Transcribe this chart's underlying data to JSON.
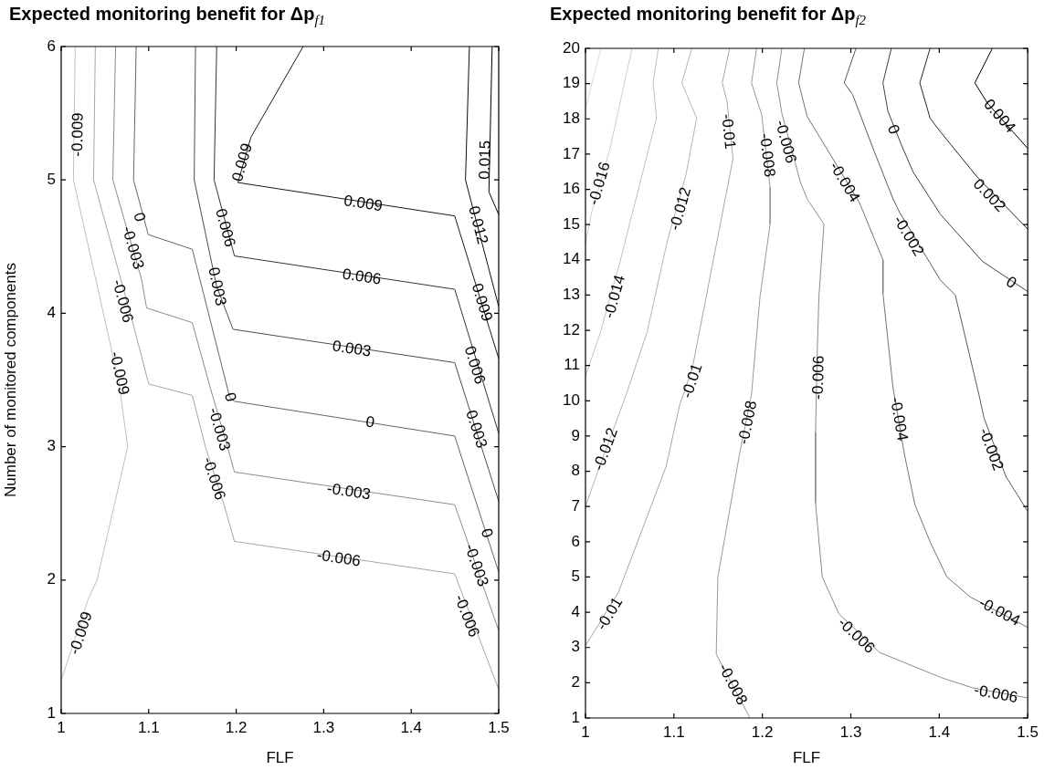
{
  "chart_data": [
    {
      "type": "line",
      "title": "Expected monitoring benefit for Δp$_{f1}$",
      "xlabel": "FLF",
      "ylabel": "Number of monitored components",
      "marker": "none",
      "legend": false,
      "xlim": [
        1,
        1.5
      ],
      "xticks": [
        1,
        1.1,
        1.2,
        1.3,
        1.4,
        1.5
      ],
      "ylim": [
        1,
        6
      ],
      "yticks": [
        1,
        2,
        3,
        4,
        5,
        6
      ],
      "series": [
        {
          "color": "#c0c0c0",
          "x": [
            1.016,
            1.014,
            1.066,
            1.076,
            1.041,
            1.031,
            1.0
          ],
          "values": [
            6,
            5,
            3.48,
            3,
            2,
            1.86,
            1.25
          ]
        },
        {
          "color": "#a6a6a6",
          "x": [
            1.039,
            1.037,
            1.0827,
            1.1,
            1.1498,
            1.165,
            1.187,
            1.198,
            1.4497,
            1.5
          ],
          "values": [
            6,
            5,
            3.907,
            3.47,
            3.384,
            2.995,
            2.545,
            2.29,
            2.046,
            1.18
          ]
        },
        {
          "color": "#8c8c8c",
          "x": [
            1.0622,
            1.059,
            1.092,
            1.0976,
            1.1498,
            1.17,
            1.19,
            1.198,
            1.4497,
            1.5
          ],
          "values": [
            6,
            5,
            4.25,
            4.04,
            3.93,
            3.45,
            3.0,
            2.81,
            2.565,
            1.62
          ]
        },
        {
          "color": "#666666",
          "x": [
            1.0857,
            1.0827,
            1.0995,
            1.1498,
            1.1926,
            1.198,
            1.4497,
            1.5
          ],
          "values": [
            6,
            5,
            4.59,
            4.48,
            3.37,
            3.34,
            3.08,
            2.06
          ]
        },
        {
          "color": "#4d4d4d",
          "x": [
            1.1535,
            1.152,
            1.1777,
            1.1964,
            1.4497,
            1.5
          ],
          "values": [
            6,
            5,
            4.2,
            3.88,
            3.63,
            2.59
          ]
        },
        {
          "color": "#333333",
          "x": [
            1.1777,
            1.1747,
            1.198,
            1.4497,
            1.5
          ],
          "values": [
            6,
            5,
            4.43,
            4.18,
            3.1
          ]
        },
        {
          "color": "#1a1a1a",
          "x": [
            1.2765,
            1.2168,
            1.202,
            1.4497,
            1.5
          ],
          "values": [
            6,
            5.32,
            4.98,
            4.73,
            3.66
          ]
        },
        {
          "color": "#0d0d0d",
          "x": [
            1.4665,
            1.462,
            1.468,
            1.5
          ],
          "values": [
            6,
            5,
            4.85,
            4.05
          ]
        },
        {
          "color": "#000000",
          "x": [
            1.4925,
            1.4888,
            1.5
          ],
          "values": [
            6,
            4.91,
            4.74
          ]
        }
      ],
      "annotations": [
        {
          "text": "-0.009",
          "x": 1.0194,
          "y": 5.34
        },
        {
          "text": "-0.009",
          "x": 1.066,
          "y": 3.55
        },
        {
          "text": "-0.009",
          "x": 1.023,
          "y": 1.6
        },
        {
          "text": "-0.006",
          "x": 1.0697,
          "y": 4.09
        },
        {
          "text": "-0.006",
          "x": 1.174,
          "y": 2.76
        },
        {
          "text": "-0.006",
          "x": 1.317,
          "y": 2.16
        },
        {
          "text": "-0.006",
          "x": 1.463,
          "y": 1.73
        },
        {
          "text": "-0.003",
          "x": 1.0814,
          "y": 4.49
        },
        {
          "text": "-0.003",
          "x": 1.18,
          "y": 3.13
        },
        {
          "text": "-0.003",
          "x": 1.3286,
          "y": 2.66
        },
        {
          "text": "-0.003",
          "x": 1.4739,
          "y": 2.11
        },
        {
          "text": "0",
          "x": 1.0887,
          "y": 4.72
        },
        {
          "text": "0",
          "x": 1.1926,
          "y": 3.37
        },
        {
          "text": "0",
          "x": 1.353,
          "y": 3.18
        },
        {
          "text": "0",
          "x": 1.4857,
          "y": 2.35
        },
        {
          "text": "0.003",
          "x": 1.1777,
          "y": 4.2
        },
        {
          "text": "0.003",
          "x": 1.332,
          "y": 3.73
        },
        {
          "text": "0.003",
          "x": 1.4739,
          "y": 3.13
        },
        {
          "text": "0.006",
          "x": 1.187,
          "y": 4.64
        },
        {
          "text": "0.006",
          "x": 1.3435,
          "y": 4.27
        },
        {
          "text": "0.006",
          "x": 1.472,
          "y": 3.61
        },
        {
          "text": "0.009",
          "x": 1.2075,
          "y": 5.13
        },
        {
          "text": "0.009",
          "x": 1.345,
          "y": 4.82
        },
        {
          "text": "0.009",
          "x": 1.4803,
          "y": 4.08
        },
        {
          "text": "0.012",
          "x": 1.4758,
          "y": 4.66
        },
        {
          "text": "0.015",
          "x": 1.485,
          "y": 5.15
        }
      ]
    },
    {
      "type": "line",
      "title": "Expected monitoring benefit for Δp$_{f2}$",
      "xlabel": "FLF",
      "marker": "none",
      "legend": false,
      "xlim": [
        1,
        1.5
      ],
      "xticks": [
        1,
        1.1,
        1.2,
        1.3,
        1.4,
        1.5
      ],
      "ylim": [
        1,
        20
      ],
      "yticks": [
        1,
        2,
        3,
        4,
        5,
        6,
        7,
        8,
        9,
        10,
        11,
        12,
        13,
        14,
        15,
        16,
        17,
        18,
        19,
        20
      ],
      "series": [
        {
          "color": "#d9d9d9",
          "x": [
            1.0175,
            1.0
          ],
          "values": [
            20,
            18.3
          ]
        },
        {
          "color": "#cccccc",
          "x": [
            1.0526,
            1.0278,
            1.0069,
            1.0
          ],
          "values": [
            20,
            17.16,
            15.34,
            14.45
          ]
        },
        {
          "color": "#c0c0c0",
          "x": [
            1.0823,
            1.0765,
            1.0803,
            1.0392,
            1.0164,
            1.0
          ],
          "values": [
            20,
            19.02,
            18.02,
            13.96,
            11.9,
            10.7
          ]
        },
        {
          "color": "#b3b3b3",
          "x": [
            1.1203,
            1.1089,
            1.1257,
            1.1135,
            1.0925,
            1.0697,
            1.0468,
            1.0392,
            1.0126,
            1.0
          ],
          "values": [
            20,
            19.02,
            18.02,
            16.4,
            14.53,
            11.95,
            10.23,
            9.71,
            7.9,
            7.0
          ]
        },
        {
          "color": "#a6a6a6",
          "x": [
            1.163,
            1.1546,
            1.16,
            1.1668,
            1.121,
            1.1063,
            1.0912,
            1.0373,
            1.0
          ],
          "values": [
            20,
            19.02,
            18.5,
            16.87,
            10.95,
            9.86,
            8.14,
            4.57,
            3.05
          ]
        },
        {
          "color": "#999999",
          "x": [
            1.1935,
            1.1877,
            1.1992,
            1.2087,
            1.2087,
            1.1973,
            1.1877,
            1.1744,
            1.1497,
            1.1478,
            1.186
          ],
          "values": [
            20,
            19.02,
            18.12,
            16.06,
            15.01,
            12.95,
            10.18,
            8.52,
            5.0,
            2.81,
            1.0
          ]
        },
        {
          "color": "#8c8c8c",
          "x": [
            1.222,
            1.2163,
            1.222,
            1.243,
            1.2506,
            1.2696,
            1.2639,
            1.262,
            1.2601,
            1.2601,
            1.2677,
            1.2867,
            1.3324,
            1.4029,
            1.4371,
            1.5
          ],
          "values": [
            20,
            19.02,
            18.16,
            16.2,
            15.73,
            15.01,
            12.95,
            11.33,
            9.1,
            7.1,
            5.0,
            3.95,
            2.86,
            2.14,
            1.86,
            1.57
          ]
        },
        {
          "color": "#737373",
          "x": [
            1.2475,
            1.241,
            1.2506,
            1.2772,
            1.3096,
            1.3363,
            1.3363,
            1.3477,
            1.361,
            1.3725,
            1.3896,
            1.4086,
            1.4353,
            1.5
          ],
          "values": [
            20,
            19.02,
            18.07,
            16.97,
            15.63,
            14.0,
            13.05,
            10.37,
            8.43,
            7.05,
            6.0,
            5.0,
            4.43,
            3.57
          ]
        },
        {
          "color": "#595959",
          "x": [
            1.3058,
            1.2925,
            1.302,
            1.3267,
            1.3477,
            1.3553,
            1.401,
            1.4181,
            1.4448,
            1.4505,
            1.4752,
            1.5
          ],
          "values": [
            20,
            19.02,
            18.69,
            17.06,
            15.73,
            15.34,
            13.43,
            13.0,
            10.18,
            9.52,
            7.86,
            6.86
          ]
        },
        {
          "color": "#404040",
          "x": [
            1.3458,
            1.3363,
            1.342,
            1.3572,
            1.3705,
            1.401,
            1.4486,
            1.5
          ],
          "values": [
            20,
            19.02,
            18.21,
            17.26,
            16.49,
            15.3,
            13.96,
            13.1
          ]
        },
        {
          "color": "#262626",
          "x": [
            1.3896,
            1.378,
            1.3896,
            1.401,
            1.4429,
            1.5
          ],
          "values": [
            20,
            19.02,
            18.02,
            17.64,
            16.35,
            14.87
          ]
        },
        {
          "color": "#000000",
          "x": [
            1.46,
            1.4402,
            1.4543,
            1.5
          ],
          "values": [
            20,
            19.02,
            18.45,
            17.16
          ]
        }
      ],
      "annotations": [
        {
          "text": "-0.016",
          "x": 1.0163,
          "y": 16.16
        },
        {
          "text": "-0.014",
          "x": 1.0335,
          "y": 12.95
        },
        {
          "text": "-0.012",
          "x": 1.1078,
          "y": 15.44
        },
        {
          "text": "-0.012",
          "x": 1.0232,
          "y": 8.62
        },
        {
          "text": "-0.01",
          "x": 1.161,
          "y": 17.64
        },
        {
          "text": "-0.01",
          "x": 1.121,
          "y": 10.56
        },
        {
          "text": "-0.01",
          "x": 1.0278,
          "y": 3.95
        },
        {
          "text": "-0.008",
          "x": 1.205,
          "y": 16.97
        },
        {
          "text": "-0.008",
          "x": 1.1839,
          "y": 9.38
        },
        {
          "text": "-0.008",
          "x": 1.166,
          "y": 1.95
        },
        {
          "text": "-0.006",
          "x": 1.2258,
          "y": 17.35
        },
        {
          "text": "-0.006",
          "x": 1.2639,
          "y": 10.66
        },
        {
          "text": "-0.006",
          "x": 1.3058,
          "y": 3.33
        },
        {
          "text": "-0.006",
          "x": 1.4638,
          "y": 1.67
        },
        {
          "text": "-0.004",
          "x": 1.2925,
          "y": 16.2
        },
        {
          "text": "-0.004",
          "x": 1.3538,
          "y": 9.48
        },
        {
          "text": "-0.004",
          "x": 1.4677,
          "y": 4.0
        },
        {
          "text": "-0.002",
          "x": 1.3648,
          "y": 14.67
        },
        {
          "text": "-0.002",
          "x": 1.4581,
          "y": 8.62
        },
        {
          "text": "0",
          "x": 1.3477,
          "y": 17.69
        },
        {
          "text": "0",
          "x": 1.481,
          "y": 13.34
        },
        {
          "text": "0.002",
          "x": 1.4562,
          "y": 15.82
        },
        {
          "text": "0.004",
          "x": 1.4676,
          "y": 18.07
        }
      ]
    }
  ]
}
